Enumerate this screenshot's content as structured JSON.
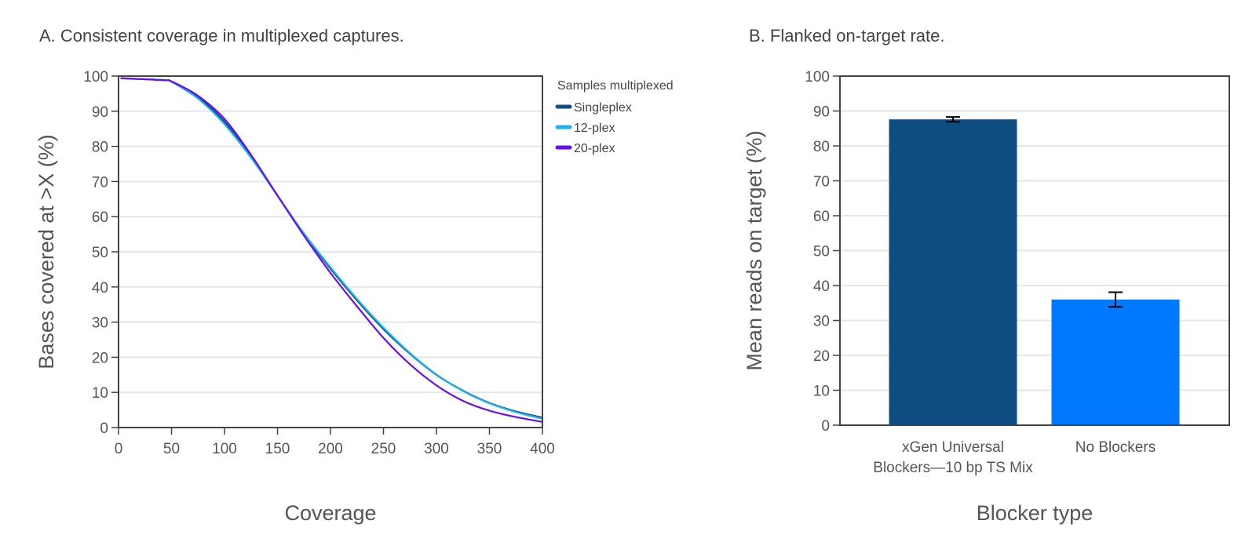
{
  "chart_data": [
    {
      "type": "line",
      "title": "A. Consistent coverage in multiplexed captures.",
      "xlabel": "Coverage",
      "ylabel": "Bases covered at >X (%)",
      "xlim": [
        0,
        400
      ],
      "ylim": [
        0,
        100
      ],
      "xticks": [
        0,
        50,
        100,
        150,
        200,
        250,
        300,
        350,
        400
      ],
      "yticks": [
        0,
        10,
        20,
        30,
        40,
        50,
        60,
        70,
        80,
        90,
        100
      ],
      "grid": true,
      "legend_title": "Samples multiplexed",
      "legend_position": "right",
      "x": [
        2,
        25,
        45,
        50,
        75,
        100,
        125,
        150,
        175,
        200,
        225,
        250,
        275,
        300,
        325,
        350,
        375,
        400
      ],
      "series": [
        {
          "name": "Singleplex",
          "color": "#0f4c81",
          "values": [
            99.4,
            99.1,
            98.8,
            98.4,
            94,
            87,
            77,
            66,
            55,
            45.2,
            36.2,
            28,
            21,
            15,
            10.5,
            7,
            4.6,
            2.8
          ]
        },
        {
          "name": "12-plex",
          "color": "#1ab2f0",
          "values": [
            99.4,
            99.1,
            98.8,
            98.4,
            93.6,
            86.3,
            76.8,
            66,
            55.2,
            45.6,
            36.6,
            28.4,
            21.2,
            15.1,
            10.4,
            6.9,
            4.4,
            2.5
          ]
        },
        {
          "name": "20-plex",
          "color": "#6a0df0",
          "values": [
            99.4,
            99.1,
            98.8,
            98.5,
            94.4,
            87.8,
            77.6,
            66,
            54.6,
            44,
            34.5,
            25.5,
            18,
            12,
            7.6,
            4.8,
            3,
            1.6
          ]
        }
      ]
    },
    {
      "type": "bar",
      "title": "B. Flanked on-target rate.",
      "xlabel": "Blocker type",
      "ylabel": "Mean reads on target (%)",
      "ylim": [
        0,
        100
      ],
      "yticks": [
        0,
        10,
        20,
        30,
        40,
        50,
        60,
        70,
        80,
        90,
        100
      ],
      "grid": true,
      "categories": [
        {
          "lines": [
            "xGen Universal",
            "Blockers—10 bp TS Mix"
          ]
        },
        {
          "lines": [
            "No Blockers"
          ]
        }
      ],
      "values": [
        87.6,
        36.0
      ],
      "errors": [
        0.7,
        2.1
      ],
      "colors": [
        "#0f4c81",
        "#0078ff"
      ]
    }
  ]
}
